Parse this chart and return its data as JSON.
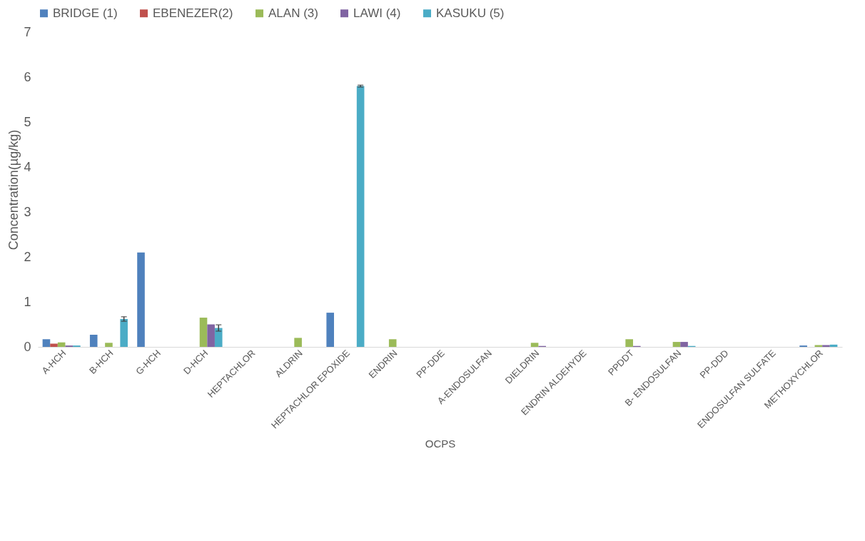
{
  "chart_data": {
    "type": "bar",
    "xlabel": "OCPS",
    "ylabel": "Concentration(µg/kg)",
    "categories": [
      "A-HCH",
      "B-HCH",
      "G-HCH",
      "D-HCH",
      "HEPTACHLOR",
      "ALDRIN",
      "HEPTACHLOR EPOXIDE",
      "ENDRIN",
      "PP-DDE",
      "A-ENDOSULFAN",
      "DIELDRIN",
      "ENDRIN ALDEHYDE",
      "PPDDT",
      "B- ENDOSULFAN",
      "PP-DDD",
      "ENDOSULFAN SULFATE",
      "METHOXYCHLOR"
    ],
    "series": [
      {
        "name": "BRIDGE (1)",
        "color": "#4f81bd",
        "values": [
          0.17,
          0.27,
          2.1,
          0,
          0,
          0,
          0.76,
          0,
          0,
          0,
          0,
          0,
          0,
          0,
          0,
          0,
          0.03
        ]
      },
      {
        "name": "EBENEZER(2)",
        "color": "#c0504d",
        "values": [
          0.07,
          0,
          0,
          0,
          0,
          0,
          0,
          0,
          0,
          0,
          0,
          0,
          0,
          0,
          0,
          0,
          0
        ]
      },
      {
        "name": "ALAN (3)",
        "color": "#9bbb59",
        "values": [
          0.1,
          0.09,
          0,
          0.65,
          0,
          0.2,
          0,
          0.17,
          0,
          0,
          0.09,
          0,
          0.17,
          0.11,
          0,
          0,
          0.04
        ]
      },
      {
        "name": "LAWI (4)",
        "color": "#8064a2",
        "values": [
          0.03,
          0,
          0,
          0.5,
          0,
          0,
          0,
          0,
          0,
          0,
          0.02,
          0,
          0.02,
          0.11,
          0,
          0,
          0.04
        ]
      },
      {
        "name": "KASUKU (5)",
        "color": "#4bacc6",
        "values": [
          0.03,
          0.62,
          0,
          0.42,
          0,
          0,
          5.8,
          0,
          0,
          0,
          0,
          0,
          0,
          0.02,
          0,
          0,
          0.05
        ],
        "errors": [
          null,
          0.05,
          null,
          0.07,
          null,
          null,
          0.02,
          null,
          null,
          null,
          null,
          null,
          null,
          null,
          null,
          null,
          null
        ]
      }
    ],
    "ylim": [
      0,
      7
    ],
    "yticks": [
      0,
      1,
      2,
      3,
      4,
      5,
      6,
      7
    ],
    "grid": false,
    "legend": "top"
  }
}
